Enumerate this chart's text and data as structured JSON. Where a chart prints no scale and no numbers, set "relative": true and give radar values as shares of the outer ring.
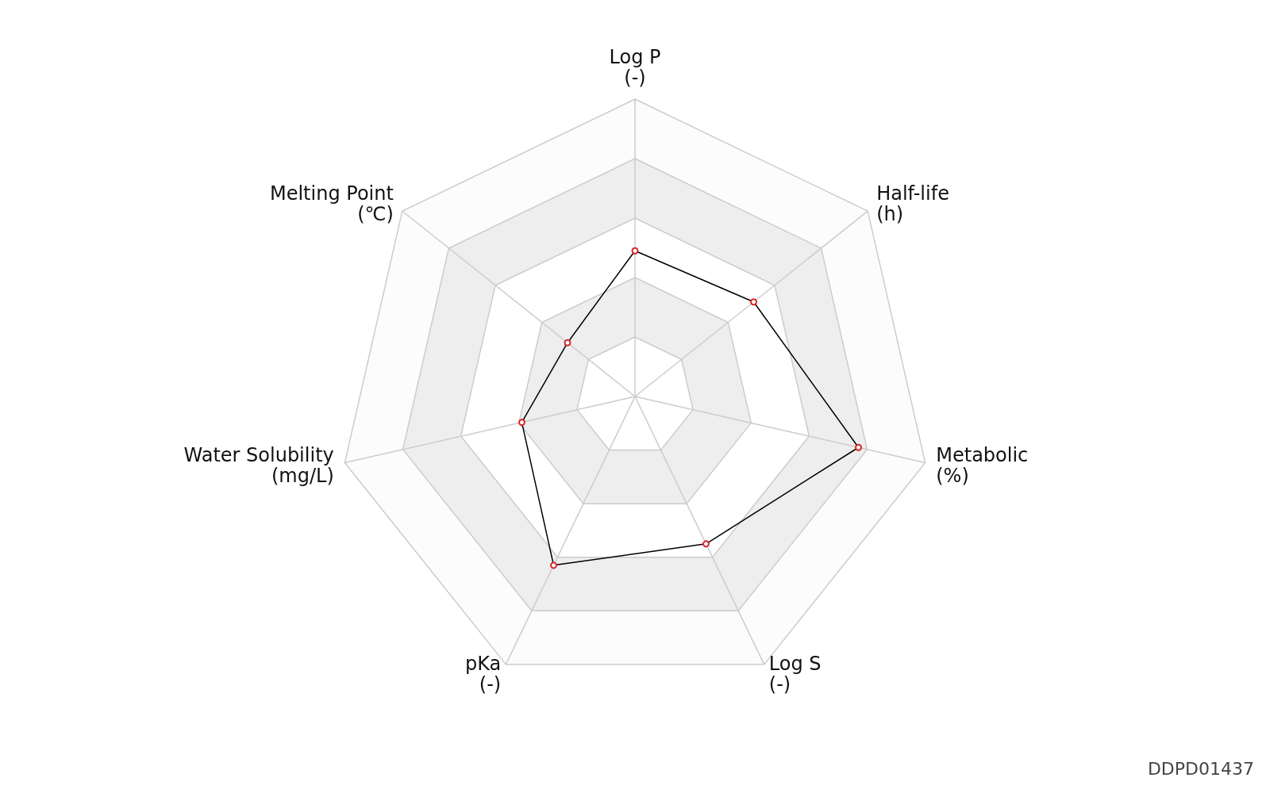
{
  "chart_data": {
    "type": "radar",
    "relative": true,
    "categories": [
      "Log P\n(-)",
      "Half-life\n(h)",
      "Metabolic\n(%)",
      "Log S\n(-)",
      "pKa\n(-)",
      "Water Solubility\n(mg/L)",
      "Melting Point\n(℃)"
    ],
    "series": [
      {
        "color": "#000000",
        "values": [
          0.49,
          0.51,
          0.77,
          0.55,
          0.63,
          0.39,
          0.29
        ]
      }
    ],
    "marker": "circle",
    "annotations": [
      "DDPD01437"
    ]
  }
}
